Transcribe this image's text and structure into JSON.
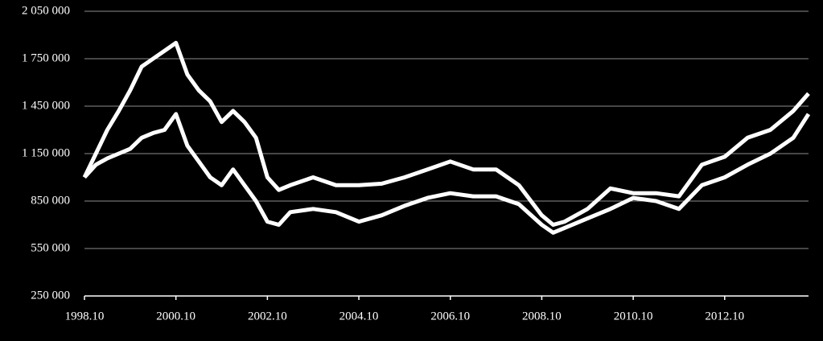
{
  "chart_data": {
    "type": "line",
    "x": [
      "1998.10",
      "1999.01",
      "1999.04",
      "1999.07",
      "1999.10",
      "2000.01",
      "2000.04",
      "2000.07",
      "2000.10",
      "2001.01",
      "2001.04",
      "2001.07",
      "2001.10",
      "2002.01",
      "2002.04",
      "2002.07",
      "2002.10",
      "2003.01",
      "2003.04",
      "2003.10",
      "2004.04",
      "2004.10",
      "2005.04",
      "2005.10",
      "2006.04",
      "2006.10",
      "2007.04",
      "2007.10",
      "2008.04",
      "2008.10",
      "2009.01",
      "2009.04",
      "2009.10",
      "2010.04",
      "2010.10",
      "2011.04",
      "2011.10",
      "2012.04",
      "2012.10",
      "2013.04",
      "2013.10",
      "2014.04",
      "2014.08"
    ],
    "series": [
      {
        "color": "#ffffff",
        "values": [
          1000000,
          1150000,
          1300000,
          1420000,
          1550000,
          1700000,
          1750000,
          1800000,
          1850000,
          1650000,
          1550000,
          1480000,
          1350000,
          1420000,
          1350000,
          1250000,
          1000000,
          920000,
          950000,
          1000000,
          950000,
          950000,
          960000,
          1000000,
          1050000,
          1100000,
          1050000,
          1050000,
          950000,
          760000,
          700000,
          720000,
          800000,
          930000,
          900000,
          900000,
          880000,
          1080000,
          1130000,
          1250000,
          1300000,
          1420000,
          1530000
        ]
      },
      {
        "color": "#ffffff",
        "values": [
          1000000,
          1080000,
          1120000,
          1150000,
          1180000,
          1250000,
          1280000,
          1300000,
          1400000,
          1200000,
          1100000,
          1000000,
          950000,
          1050000,
          950000,
          850000,
          720000,
          700000,
          780000,
          800000,
          780000,
          720000,
          760000,
          820000,
          870000,
          900000,
          880000,
          880000,
          830000,
          700000,
          650000,
          680000,
          740000,
          800000,
          870000,
          850000,
          800000,
          950000,
          1000000,
          1080000,
          1150000,
          1250000,
          1400000
        ]
      }
    ],
    "xlim": [
      "1998.10",
      "2014.08"
    ],
    "xticks": [
      "1998.10",
      "2000.10",
      "2002.10",
      "2004.10",
      "2006.10",
      "2008.10",
      "2010.10",
      "2012.10"
    ],
    "ylim": [
      250000,
      2050000
    ],
    "yticks": [
      {
        "value": 250000,
        "label": "250 000"
      },
      {
        "value": 550000,
        "label": "550 000"
      },
      {
        "value": 850000,
        "label": "850 000"
      },
      {
        "value": 1150000,
        "label": "1 150 000"
      },
      {
        "value": 1450000,
        "label": "1 450 000"
      },
      {
        "value": 1750000,
        "label": "1 750 000"
      },
      {
        "value": 2050000,
        "label": "2 050 000"
      }
    ],
    "grid": true
  }
}
